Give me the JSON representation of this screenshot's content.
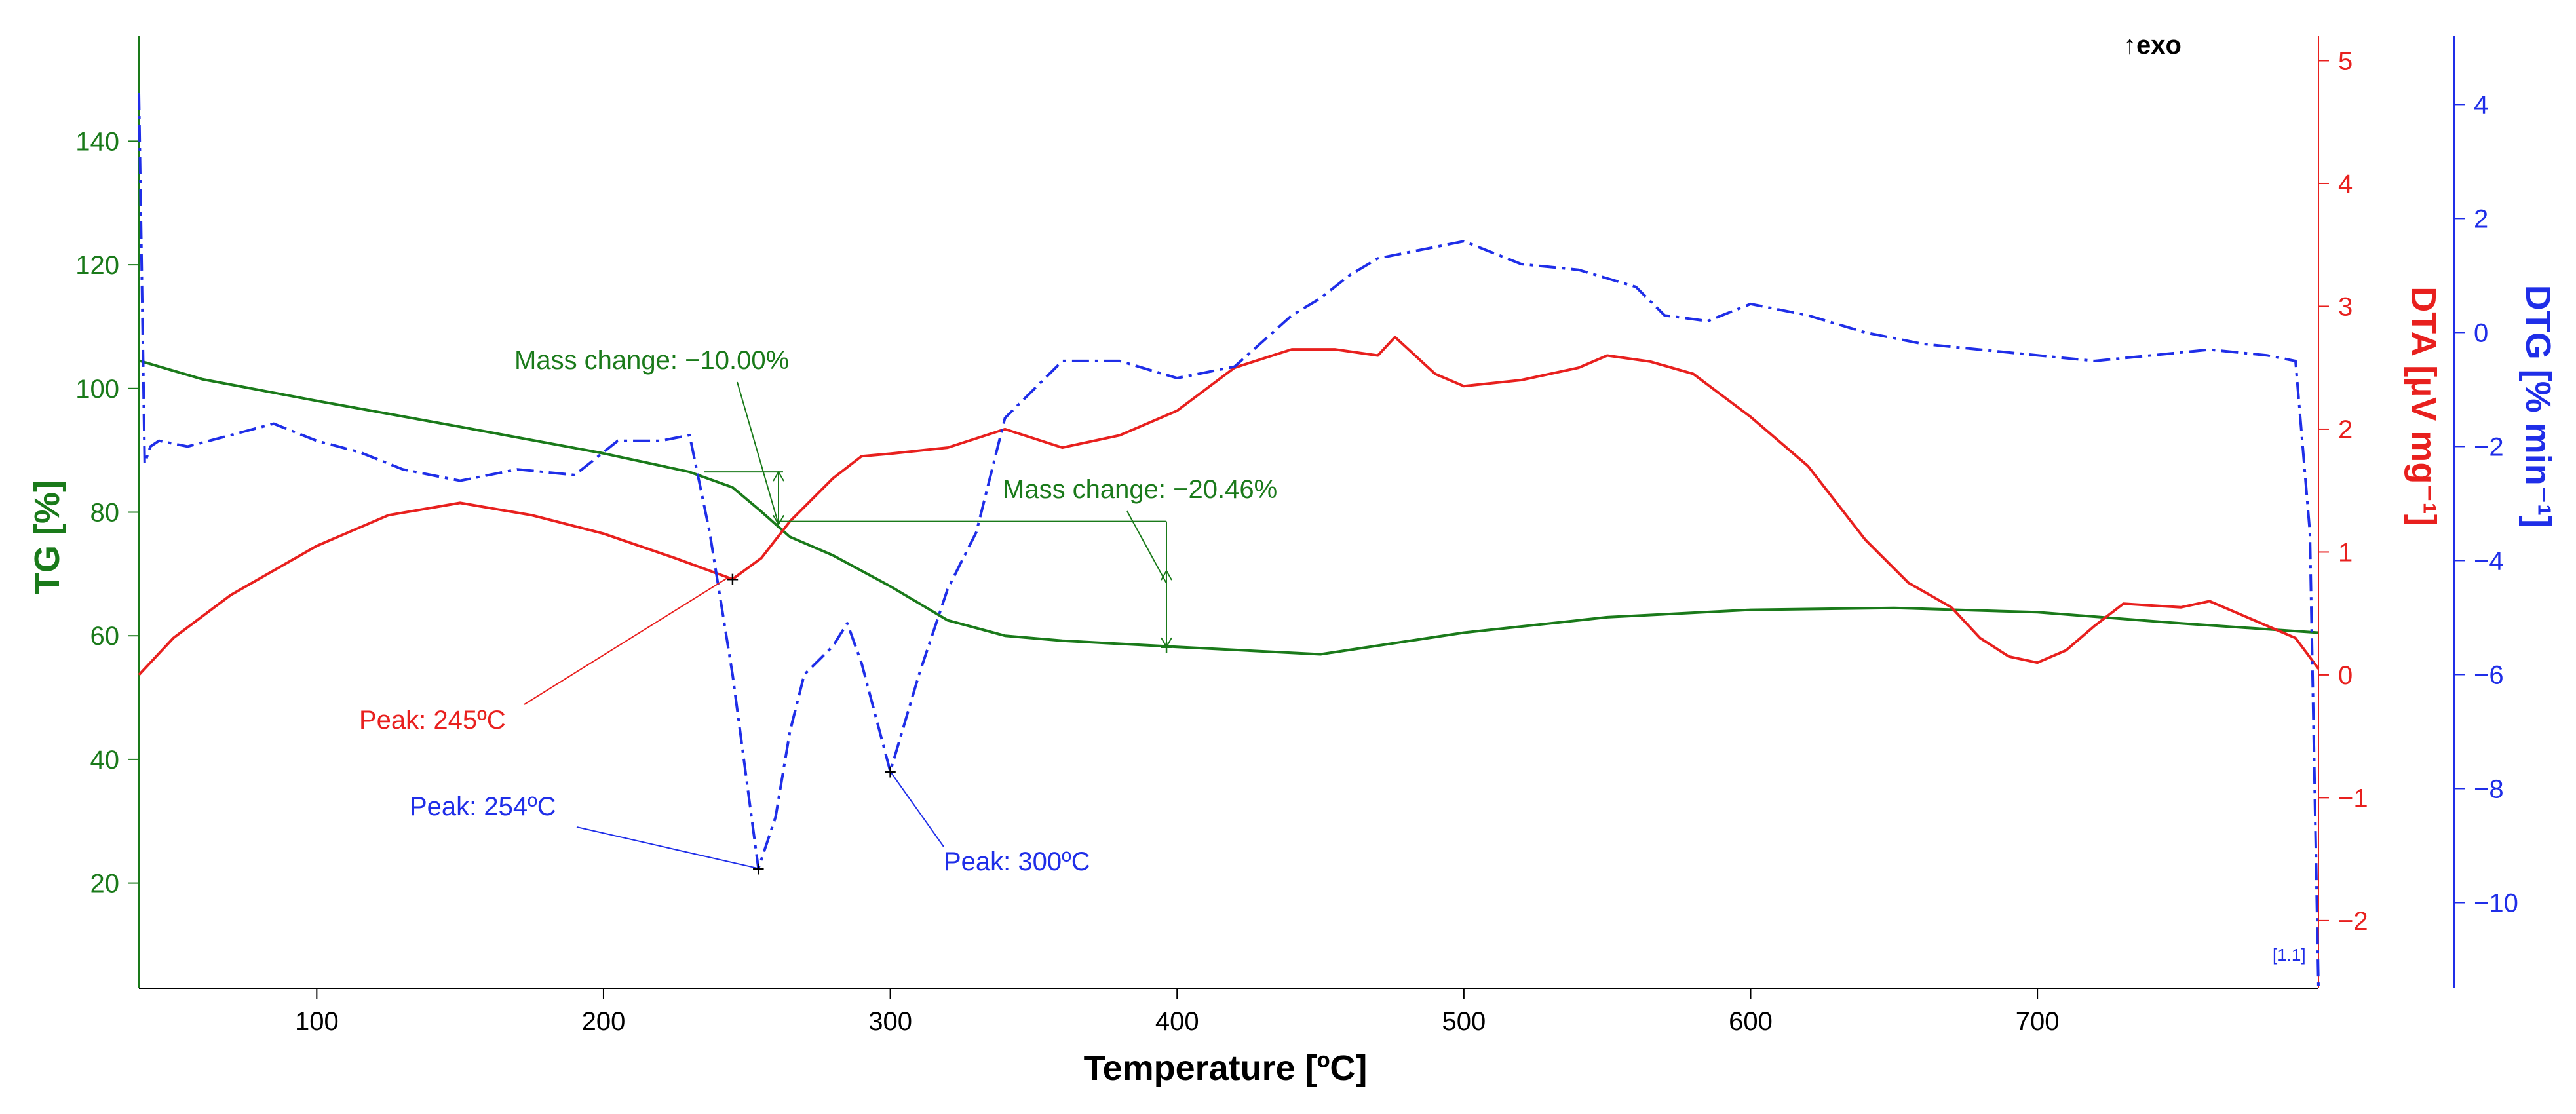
{
  "chart_data": {
    "type": "line",
    "title": "",
    "exo_marker": "↑exo",
    "range_label": "[1.1]",
    "xlabel": "Temperature [ºC]",
    "xlim": [
      38,
      798
    ],
    "x_ticks": [
      100,
      200,
      300,
      400,
      500,
      600,
      700
    ],
    "axes": {
      "tg": {
        "label": "TG [%]",
        "color": "#1a7a1a",
        "lim": [
          3,
          157
        ],
        "ticks": [
          20,
          40,
          60,
          80,
          100,
          120,
          140
        ]
      },
      "dta": {
        "label": "DTA [µV mg⁻¹]",
        "color": "#e8201e",
        "lim": [
          -2.55,
          5.2
        ],
        "ticks": [
          -2,
          -1,
          0,
          1,
          2,
          3,
          4,
          5
        ]
      },
      "dtg": {
        "label": "DTG [% min⁻¹]",
        "color": "#1f2ee8",
        "lim": [
          -11.5,
          5.2
        ],
        "ticks": [
          -10,
          -8,
          -6,
          -4,
          -2,
          0,
          2,
          4
        ]
      }
    },
    "series": [
      {
        "name": "TG",
        "axis": "tg",
        "style": "solid",
        "x": [
          38,
          60,
          100,
          150,
          200,
          230,
          245,
          254,
          265,
          280,
          300,
          320,
          340,
          360,
          400,
          450,
          500,
          550,
          600,
          650,
          700,
          750,
          798
        ],
        "y": [
          104.5,
          101.5,
          98,
          93.8,
          89.5,
          86.5,
          84,
          80.5,
          76,
          73,
          68,
          62.5,
          60,
          59.2,
          58.2,
          57,
          60.5,
          63,
          64.2,
          64.5,
          63.8,
          62,
          60.5
        ]
      },
      {
        "name": "DTA",
        "axis": "dta",
        "style": "solid",
        "x": [
          38,
          50,
          70,
          100,
          125,
          150,
          175,
          200,
          225,
          245,
          255,
          265,
          280,
          290,
          300,
          320,
          340,
          360,
          380,
          400,
          420,
          440,
          455,
          470,
          476,
          490,
          500,
          520,
          540,
          550,
          565,
          580,
          600,
          620,
          640,
          655,
          670,
          680,
          690,
          700,
          710,
          720,
          730,
          750,
          760,
          775,
          790,
          798
        ],
        "y": [
          0,
          0.3,
          0.65,
          1.05,
          1.3,
          1.4,
          1.3,
          1.15,
          0.95,
          0.78,
          0.95,
          1.25,
          1.6,
          1.78,
          1.8,
          1.85,
          2.0,
          1.85,
          1.95,
          2.15,
          2.5,
          2.65,
          2.65,
          2.6,
          2.75,
          2.45,
          2.35,
          2.4,
          2.5,
          2.6,
          2.55,
          2.45,
          2.1,
          1.7,
          1.1,
          0.75,
          0.55,
          0.3,
          0.15,
          0.1,
          0.2,
          0.4,
          0.58,
          0.55,
          0.6,
          0.45,
          0.3,
          0.05
        ]
      },
      {
        "name": "DTG",
        "axis": "dtg",
        "style": "dashdot",
        "x": [
          38,
          39,
          40,
          42,
          45,
          55,
          70,
          85,
          100,
          115,
          130,
          150,
          170,
          190,
          205,
          220,
          230,
          237,
          245,
          254,
          260,
          265,
          270,
          280,
          285,
          290,
          300,
          310,
          320,
          330,
          340,
          360,
          380,
          400,
          420,
          440,
          450,
          460,
          470,
          480,
          500,
          520,
          540,
          560,
          570,
          585,
          600,
          620,
          640,
          660,
          680,
          700,
          720,
          740,
          760,
          780,
          790,
          795,
          798
        ],
        "y": [
          4.2,
          1.0,
          -2.3,
          -2.0,
          -1.9,
          -2.0,
          -1.8,
          -1.6,
          -1.9,
          -2.1,
          -2.4,
          -2.6,
          -2.4,
          -2.5,
          -1.9,
          -1.9,
          -1.8,
          -3.5,
          -6.0,
          -9.4,
          -8.5,
          -7.0,
          -6.0,
          -5.5,
          -5.1,
          -5.8,
          -7.7,
          -6.0,
          -4.5,
          -3.5,
          -1.5,
          -0.5,
          -0.5,
          -0.8,
          -0.6,
          0.3,
          0.6,
          1.0,
          1.3,
          1.4,
          1.6,
          1.2,
          1.1,
          0.8,
          0.3,
          0.2,
          0.5,
          0.3,
          0.0,
          -0.2,
          -0.3,
          -0.4,
          -0.5,
          -0.4,
          -0.3,
          -0.4,
          -0.5,
          -3.5,
          -11.5
        ]
      }
    ],
    "annotations": [
      {
        "text": "Mass change: −10.00%",
        "color": "#1a7a1a"
      },
      {
        "text": "Mass change: −20.46%",
        "color": "#1a7a1a"
      },
      {
        "text": "Peak: 245ºC",
        "color": "#e8201e"
      },
      {
        "text": "Peak: 254ºC",
        "color": "#1f2ee8"
      },
      {
        "text": "Peak: 300ºC",
        "color": "#1f2ee8"
      }
    ]
  }
}
